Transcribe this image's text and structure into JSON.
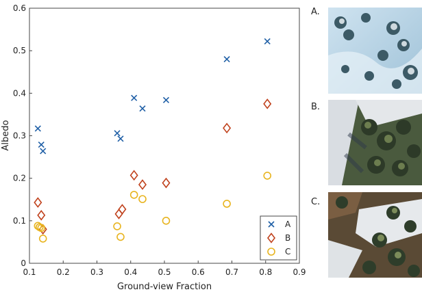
{
  "chart_data": {
    "type": "scatter",
    "title": "",
    "xlabel": "Ground-view Fraction",
    "ylabel": "Albedo",
    "xlim": [
      0.1,
      0.9
    ],
    "ylim": [
      0,
      0.6
    ],
    "xticks": [
      "0.1",
      "0.2",
      "0.3",
      "0.4",
      "0.5",
      "0.6",
      "0.7",
      "0.8",
      "0.9"
    ],
    "yticks": [
      "0",
      "0.1",
      "0.2",
      "0.3",
      "0.4",
      "0.5",
      "0.6"
    ],
    "grid": false,
    "legend_position": "bottom-right",
    "series": [
      {
        "name": "A",
        "marker": "x",
        "color": "#1f5fa6",
        "points": [
          [
            0.125,
            0.317
          ],
          [
            0.135,
            0.279
          ],
          [
            0.14,
            0.264
          ],
          [
            0.36,
            0.306
          ],
          [
            0.37,
            0.293
          ],
          [
            0.41,
            0.389
          ],
          [
            0.435,
            0.364
          ],
          [
            0.505,
            0.384
          ],
          [
            0.685,
            0.48
          ],
          [
            0.805,
            0.522
          ]
        ]
      },
      {
        "name": "B",
        "marker": "diamond",
        "color": "#c0411c",
        "points": [
          [
            0.125,
            0.143
          ],
          [
            0.135,
            0.113
          ],
          [
            0.14,
            0.08
          ],
          [
            0.365,
            0.116
          ],
          [
            0.375,
            0.127
          ],
          [
            0.41,
            0.207
          ],
          [
            0.435,
            0.185
          ],
          [
            0.505,
            0.189
          ],
          [
            0.685,
            0.318
          ],
          [
            0.805,
            0.375
          ]
        ]
      },
      {
        "name": "C",
        "marker": "circle",
        "color": "#e8b41f",
        "points": [
          [
            0.125,
            0.088
          ],
          [
            0.13,
            0.085
          ],
          [
            0.135,
            0.083
          ],
          [
            0.14,
            0.058
          ],
          [
            0.36,
            0.087
          ],
          [
            0.37,
            0.062
          ],
          [
            0.41,
            0.161
          ],
          [
            0.435,
            0.151
          ],
          [
            0.505,
            0.1
          ],
          [
            0.685,
            0.14
          ],
          [
            0.805,
            0.206
          ]
        ]
      }
    ]
  },
  "photos": [
    {
      "label": "A.",
      "scene": "snow-covered-forest-aerial"
    },
    {
      "label": "B.",
      "scene": "shaded-forest-slope-aerial"
    },
    {
      "label": "C.",
      "scene": "patchy-snow-forest-aerial"
    }
  ]
}
